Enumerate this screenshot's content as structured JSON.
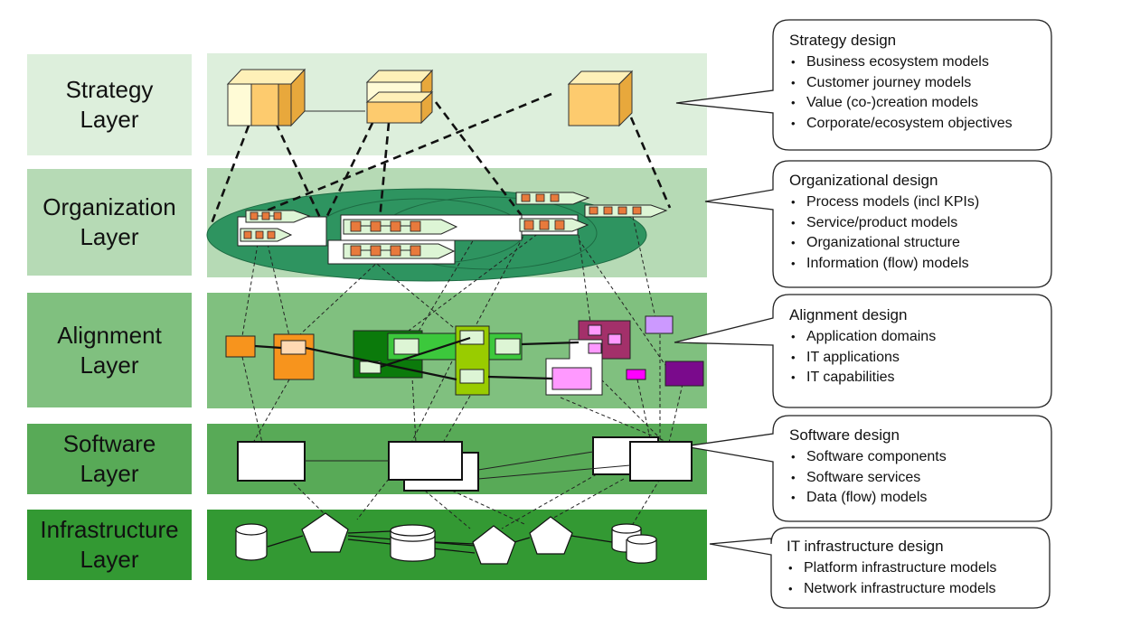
{
  "layers": [
    {
      "label": "Strategy\nLayer",
      "color": "#DDEFDC",
      "label_color": "#DDEFDC"
    },
    {
      "label": "Organization\nLayer",
      "color": "#B6DAB5",
      "label_color": "#B6DAB5"
    },
    {
      "label": "Alignment\nLayer",
      "color": "#80C07F",
      "label_color": "#80C07F"
    },
    {
      "label": "Software\nLayer",
      "color": "#58AA57",
      "label_color": "#58AA57"
    },
    {
      "label": "Infrastructure\nLayer",
      "color": "#339933",
      "label_color": "#339933"
    }
  ],
  "callouts": [
    {
      "title": "Strategy design",
      "items": [
        "Business ecosystem models",
        "Customer journey models",
        "Value (co-)creation models",
        "Corporate/ecosystem objectives"
      ]
    },
    {
      "title": "Organizational design",
      "items": [
        "Process models (incl KPIs)",
        "Service/product models",
        "Organizational structure",
        "Information (flow) models"
      ]
    },
    {
      "title": "Alignment design",
      "items": [
        "Application domains",
        "IT applications",
        "IT capabilities"
      ]
    },
    {
      "title": "Software design",
      "items": [
        "Software components",
        "Software services",
        "Data (flow) models"
      ]
    },
    {
      "title": "IT infrastructure design",
      "items": [
        "Platform infrastructure models",
        "Network infrastructure models"
      ]
    }
  ],
  "colors": {
    "cube_front": "#FDCB6E",
    "cube_top": "#FEF0B8",
    "cube_side": "#E8A83C",
    "cube_pale": "#FFFBD6",
    "org_ellipse": "#2E9460",
    "process_task": "#E87A3C",
    "process_arrow": "#DDF5D5",
    "orange_app": "#F7941D",
    "dark_green_app": "#0B7A0B",
    "mid_green_app": "#3CC83C",
    "lime_app": "#99CC00",
    "maroon_app": "#A3306A",
    "pink_app": "#FF99FF",
    "lavender_app": "#CC99FF",
    "magenta_app": "#FF00FF",
    "purple_app": "#7A0A8C"
  }
}
